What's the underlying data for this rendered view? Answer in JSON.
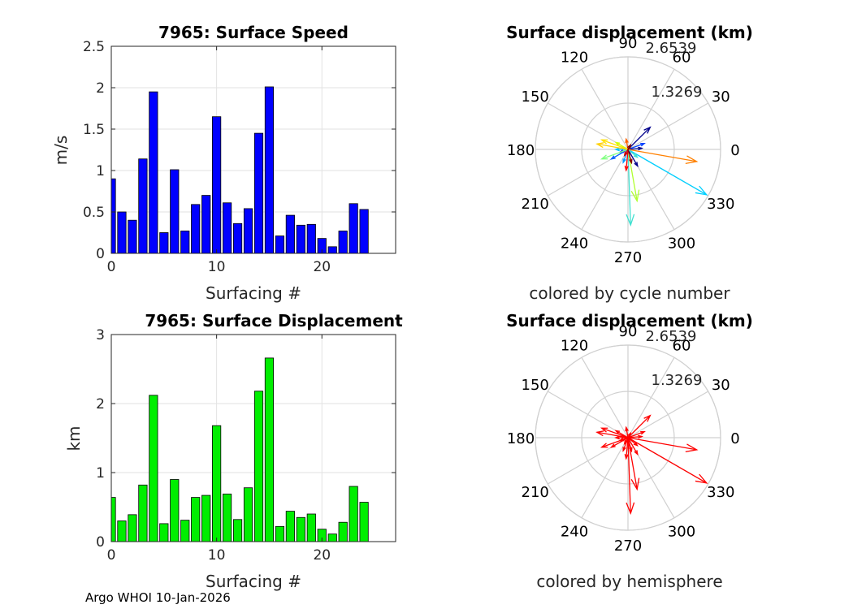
{
  "chart_data": [
    {
      "type": "bar",
      "title": "7965: Surface Speed",
      "xlabel": "Surfacing #",
      "ylabel": "m/s",
      "xlim": [
        0,
        27
      ],
      "ylim": [
        0,
        2.5
      ],
      "xticks": [
        0,
        10,
        20
      ],
      "yticks": [
        0,
        0.5,
        1,
        1.5,
        2,
        2.5
      ],
      "xtick_labels": [
        "0",
        "10",
        "20"
      ],
      "ytick_labels": [
        "0",
        "0.5",
        "1",
        "1.5",
        "2",
        "2.5"
      ],
      "color": "#0000ff",
      "x": [
        0,
        1,
        2,
        3,
        4,
        5,
        6,
        7,
        8,
        9,
        10,
        11,
        12,
        13,
        14,
        15,
        16,
        17,
        18,
        19,
        20,
        21,
        22,
        23,
        24
      ],
      "values": [
        0.9,
        0.5,
        0.4,
        1.14,
        1.95,
        0.25,
        1.01,
        0.27,
        0.59,
        0.7,
        1.65,
        0.61,
        0.36,
        0.54,
        1.45,
        2.01,
        0.21,
        0.46,
        0.34,
        0.35,
        0.18,
        0.08,
        0.27,
        0.6,
        0.53
      ]
    },
    {
      "type": "polar-quiver",
      "title": "Surface displacement (km)",
      "caption": "colored by cycle number",
      "rmax": 2.6539,
      "rticks": [
        1.3269,
        2.6539
      ],
      "rtick_labels": [
        "1.3269",
        "2.6539"
      ],
      "angle_labels": [
        "0",
        "30",
        "60",
        "90",
        "120",
        "150",
        "180",
        "210",
        "240",
        "270",
        "300",
        "330"
      ],
      "vectors": [
        {
          "angle": 45,
          "r": 0.9,
          "color": "#00008b"
        },
        {
          "angle": 5,
          "r": 0.4,
          "color": "#00008b"
        },
        {
          "angle": 300,
          "r": 0.55,
          "color": "#00008b"
        },
        {
          "angle": 200,
          "r": 0.25,
          "color": "#0000ff"
        },
        {
          "angle": 20,
          "r": 0.5,
          "color": "#0040ff"
        },
        {
          "angle": 210,
          "r": 0.55,
          "color": "#0060ff"
        },
        {
          "angle": 250,
          "r": 0.4,
          "color": "#0099ff"
        },
        {
          "angle": 180,
          "r": 0.35,
          "color": "#00bfff"
        },
        {
          "angle": 330,
          "r": 2.6,
          "color": "#00d0ff"
        },
        {
          "angle": 272,
          "r": 2.17,
          "color": "#40e0d0"
        },
        {
          "angle": 320,
          "r": 0.35,
          "color": "#40e0d0"
        },
        {
          "angle": 200,
          "r": 0.8,
          "color": "#80ff80"
        },
        {
          "angle": 280,
          "r": 1.5,
          "color": "#b0ff30"
        },
        {
          "angle": 150,
          "r": 0.4,
          "color": "#d0ff00"
        },
        {
          "angle": 160,
          "r": 0.8,
          "color": "#ffe000"
        },
        {
          "angle": 170,
          "r": 0.9,
          "color": "#ffd000"
        },
        {
          "angle": 350,
          "r": 2.0,
          "color": "#ff8000"
        },
        {
          "angle": 100,
          "r": 0.3,
          "color": "#ff6000"
        },
        {
          "angle": 265,
          "r": 0.6,
          "color": "#ff0000"
        },
        {
          "angle": 240,
          "r": 0.2,
          "color": "#cc0000"
        },
        {
          "angle": 285,
          "r": 0.4,
          "color": "#8b0000"
        },
        {
          "angle": 60,
          "r": 0.15,
          "color": "#800000"
        }
      ]
    },
    {
      "type": "bar",
      "title": "7965: Surface Displacement",
      "xlabel": "Surfacing #",
      "ylabel": "km",
      "xlim": [
        0,
        27
      ],
      "ylim": [
        0,
        3
      ],
      "xticks": [
        0,
        10,
        20
      ],
      "yticks": [
        0,
        1,
        2,
        3
      ],
      "xtick_labels": [
        "0",
        "10",
        "20"
      ],
      "ytick_labels": [
        "0",
        "1",
        "2",
        "3"
      ],
      "color": "#00ee00",
      "x": [
        0,
        1,
        2,
        3,
        4,
        5,
        6,
        7,
        8,
        9,
        10,
        11,
        12,
        13,
        14,
        15,
        16,
        17,
        18,
        19,
        20,
        21,
        22,
        23,
        24
      ],
      "values": [
        0.64,
        0.3,
        0.39,
        0.82,
        2.12,
        0.26,
        0.9,
        0.31,
        0.64,
        0.67,
        1.68,
        0.69,
        0.32,
        0.78,
        2.18,
        2.66,
        0.22,
        0.44,
        0.35,
        0.4,
        0.18,
        0.11,
        0.28,
        0.8,
        0.57
      ]
    },
    {
      "type": "polar-quiver",
      "title": "Surface displacement (km)",
      "caption": "colored by hemisphere",
      "rmax": 2.6539,
      "rticks": [
        1.3269,
        2.6539
      ],
      "rtick_labels": [
        "1.3269",
        "2.6539"
      ],
      "angle_labels": [
        "0",
        "30",
        "60",
        "90",
        "120",
        "150",
        "180",
        "210",
        "240",
        "270",
        "300",
        "330"
      ],
      "vectors": [
        {
          "angle": 45,
          "r": 0.9,
          "color": "#ff0000"
        },
        {
          "angle": 5,
          "r": 0.4,
          "color": "#ff0000"
        },
        {
          "angle": 300,
          "r": 0.55,
          "color": "#ff0000"
        },
        {
          "angle": 200,
          "r": 0.25,
          "color": "#ff0000"
        },
        {
          "angle": 20,
          "r": 0.5,
          "color": "#ff0000"
        },
        {
          "angle": 210,
          "r": 0.55,
          "color": "#ff0000"
        },
        {
          "angle": 250,
          "r": 0.4,
          "color": "#ff0000"
        },
        {
          "angle": 180,
          "r": 0.35,
          "color": "#ff0000"
        },
        {
          "angle": 330,
          "r": 2.6,
          "color": "#ff0000"
        },
        {
          "angle": 272,
          "r": 2.17,
          "color": "#ff0000"
        },
        {
          "angle": 320,
          "r": 0.35,
          "color": "#ff0000"
        },
        {
          "angle": 200,
          "r": 0.8,
          "color": "#ff0000"
        },
        {
          "angle": 280,
          "r": 1.5,
          "color": "#ff0000"
        },
        {
          "angle": 150,
          "r": 0.4,
          "color": "#ff0000"
        },
        {
          "angle": 160,
          "r": 0.8,
          "color": "#ff0000"
        },
        {
          "angle": 170,
          "r": 0.9,
          "color": "#ff0000"
        },
        {
          "angle": 350,
          "r": 2.0,
          "color": "#ff0000"
        },
        {
          "angle": 100,
          "r": 0.3,
          "color": "#ff0000"
        },
        {
          "angle": 265,
          "r": 0.6,
          "color": "#ff0000"
        },
        {
          "angle": 240,
          "r": 0.2,
          "color": "#ff0000"
        },
        {
          "angle": 285,
          "r": 0.4,
          "color": "#ff0000"
        },
        {
          "angle": 60,
          "r": 0.15,
          "color": "#ff0000"
        }
      ]
    }
  ],
  "footer": "Argo WHOI 10-Jan-2026"
}
